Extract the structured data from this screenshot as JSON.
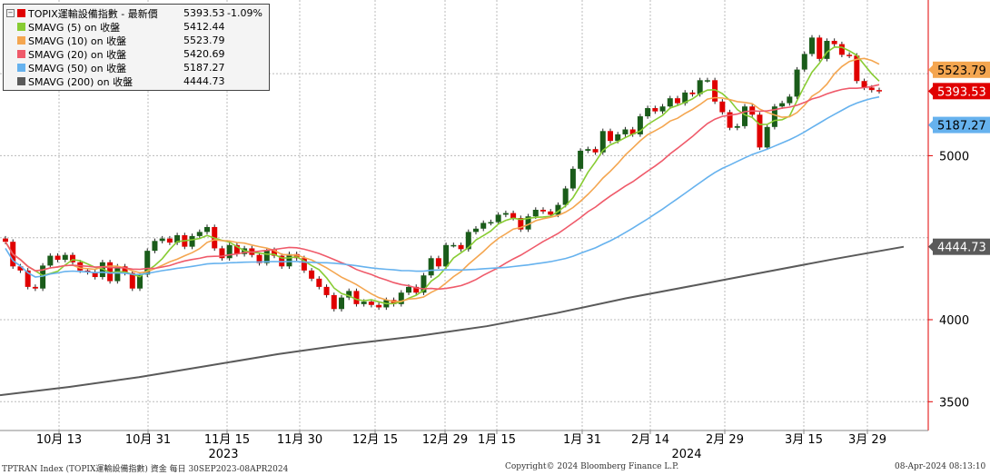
{
  "chart_data": {
    "type": "candlestick",
    "title": "TOPIX運輸設備指數 - 最新價",
    "last_value": 5393.53,
    "last_change": "-1.09%",
    "y_ticks": [
      3500,
      4000,
      5000
    ],
    "y_tick_labels": [
      "3500",
      "4000",
      "5000"
    ],
    "grid": true,
    "x_tick_labels": [
      "10月 13",
      "10月 31",
      "11月 15",
      "11月 30",
      "12月 15",
      "12月 29",
      "1月 15",
      "1月 31",
      "2月 14",
      "2月 29",
      "3月 15",
      "3月 29"
    ],
    "year_labels": [
      "2023",
      "2024"
    ],
    "up_color": "#1a5c1a",
    "down_color": "#e00000",
    "candles_close": [
      4475,
      4325,
      4300,
      4200,
      4190,
      4330,
      4390,
      4365,
      4395,
      4350,
      4300,
      4290,
      4260,
      4350,
      4235,
      4325,
      4285,
      4190,
      4275,
      4420,
      4480,
      4495,
      4470,
      4515,
      4445,
      4510,
      4535,
      4565,
      4435,
      4375,
      4455,
      4400,
      4435,
      4395,
      4345,
      4425,
      4390,
      4325,
      4400,
      4375,
      4300,
      4250,
      4200,
      4150,
      4065,
      4135,
      4175,
      4095,
      4110,
      4090,
      4075,
      4120,
      4095,
      4165,
      4200,
      4165,
      4270,
      4375,
      4325,
      4455,
      4455,
      4430,
      4535,
      4555,
      4590,
      4595,
      4640,
      4650,
      4620,
      4550,
      4630,
      4670,
      4660,
      4640,
      4700,
      4800,
      4920,
      5030,
      5040,
      5020,
      5150,
      5090,
      5130,
      5160,
      5130,
      5240,
      5290,
      5270,
      5300,
      5350,
      5320,
      5385,
      5375,
      5460,
      5460,
      5330,
      5265,
      5170,
      5180,
      5300,
      5250,
      5050,
      5175,
      5300,
      5320,
      5360,
      5525,
      5620,
      5720,
      5590,
      5700,
      5680,
      5615,
      5610,
      5455,
      5415,
      5400,
      5393.53
    ],
    "series": [
      {
        "name": "SMAVG (5)  on 收盤",
        "value": 5412.44,
        "color": "#88cc33"
      },
      {
        "name": "SMAVG (10)  on 收盤",
        "value": 5523.79,
        "color": "#f4a650"
      },
      {
        "name": "SMAVG (20)  on 收盤",
        "value": 5420.69,
        "color": "#ef5a6a"
      },
      {
        "name": "SMAVG (50)  on 收盤",
        "value": 5187.27,
        "color": "#66b2ee"
      },
      {
        "name": "SMAVG (200)  on 收盤",
        "value": 4444.73,
        "color": "#5a5a5a"
      }
    ],
    "sma200_path": [
      3540,
      3590,
      3650,
      3720,
      3790,
      3850,
      3900,
      3960,
      4040,
      4130,
      4210,
      4290,
      4370,
      4444.73
    ],
    "axis_tags": [
      {
        "label": "5523.79",
        "value": 5523.79,
        "bg": "#f4a650",
        "fg": "#000000"
      },
      {
        "label": "5393.53",
        "value": 5393.53,
        "bg": "#e00000",
        "fg": "#ffffff"
      },
      {
        "label": "5187.27",
        "value": 5187.27,
        "bg": "#66b2ee",
        "fg": "#000000"
      },
      {
        "label": "4444.73",
        "value": 4444.73,
        "bg": "#5a5a5a",
        "fg": "#ffffff"
      }
    ]
  },
  "legend": {
    "main": {
      "name": "TOPIX運輸設備指數 - 最新價",
      "value": "5393.53",
      "change": "-1.09%",
      "color": "#e00000"
    },
    "rows": [
      {
        "name": "SMAVG (5)  on 收盤",
        "value": "5412.44",
        "color": "#88cc33"
      },
      {
        "name": "SMAVG (10)  on 收盤",
        "value": "5523.79",
        "color": "#f4a650"
      },
      {
        "name": "SMAVG (20)  on 收盤",
        "value": "5420.69",
        "color": "#ef5a6a"
      },
      {
        "name": "SMAVG (50)  on 收盤",
        "value": "5187.27",
        "color": "#66b2ee"
      },
      {
        "name": "SMAVG (200)  on 收盤",
        "value": "4444.73",
        "color": "#5a5a5a"
      }
    ]
  },
  "footer": {
    "left": "TPTRAN Index (TOPIX運輸設備指數) 資金  每日 30SEP2023-08APR2024",
    "center": "Copyright© 2024 Bloomberg Finance L.P.",
    "right": "08-Apr-2024 08:13:10"
  }
}
